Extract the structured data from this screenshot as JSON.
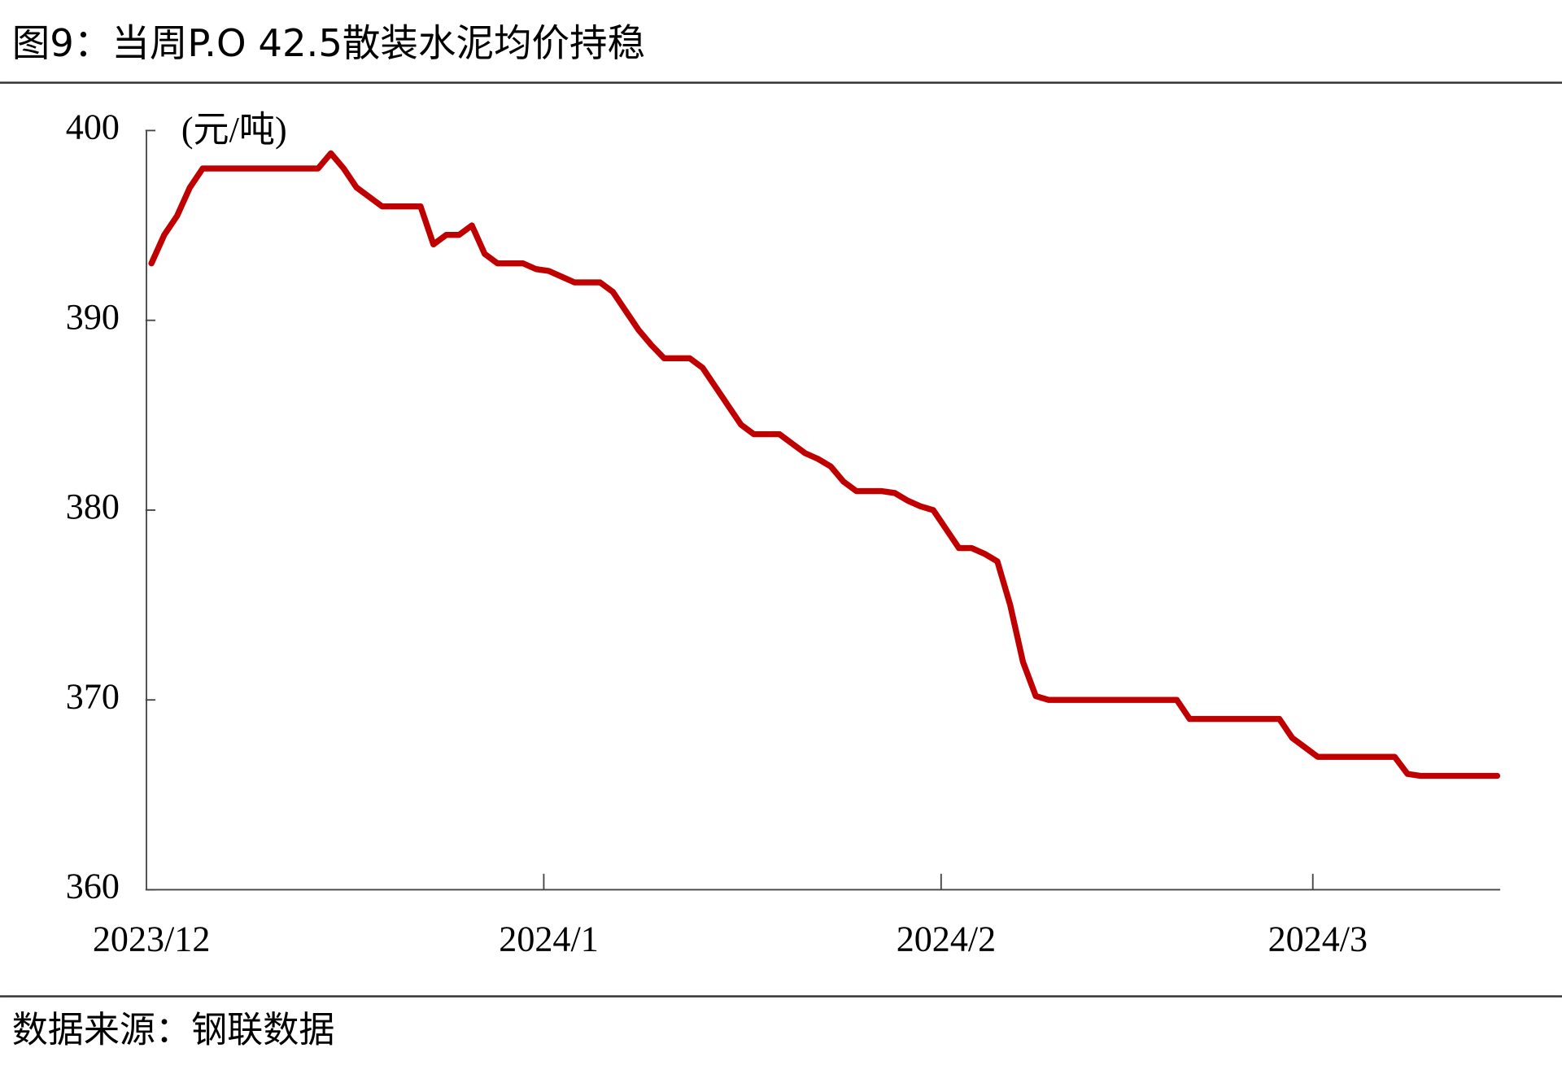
{
  "chart_data": {
    "type": "line",
    "title": "图9：当周P.O 42.5散装水泥均价持稳",
    "y_label": "(元/吨)",
    "source": "数据来源：钢联数据",
    "color": "#c00000",
    "categories": [
      "2023/12",
      null,
      null,
      null,
      null,
      null,
      null,
      null,
      null,
      null,
      null,
      null,
      null,
      null,
      null,
      null,
      null,
      null,
      null,
      null,
      null,
      null,
      null,
      null,
      null,
      null,
      null,
      null,
      null,
      null,
      null,
      "2024/1",
      null,
      null,
      null,
      null,
      null,
      null,
      null,
      null,
      null,
      null,
      null,
      null,
      null,
      null,
      null,
      null,
      null,
      null,
      null,
      null,
      null,
      null,
      null,
      null,
      null,
      null,
      null,
      null,
      null,
      null,
      "2024/2",
      null,
      null,
      null,
      null,
      null,
      null,
      null,
      null,
      null,
      null,
      null,
      null,
      null,
      null,
      null,
      null,
      null,
      null,
      null,
      null,
      null,
      null,
      null,
      null,
      null,
      null,
      null,
      null,
      "2024/3",
      null,
      null,
      null,
      null,
      null,
      null,
      null,
      null,
      null,
      null,
      null,
      null,
      null,
      null
    ],
    "values": [
      393,
      394.5,
      395.5,
      397,
      398,
      398,
      398,
      398,
      398,
      398,
      398,
      398,
      398,
      398,
      398.8,
      398,
      397,
      396.5,
      396,
      396,
      396,
      396,
      394,
      394.5,
      394.5,
      395,
      393.5,
      393,
      393,
      393,
      392.7,
      392.6,
      392.3,
      392,
      392,
      392,
      391.5,
      390.5,
      389.5,
      388.7,
      388,
      388,
      388,
      387.5,
      386.5,
      385.5,
      384.5,
      384,
      384,
      384,
      383.5,
      383,
      382.7,
      382.3,
      381.5,
      381,
      381,
      381,
      380.9,
      380.5,
      380.2,
      380,
      379,
      378,
      378,
      377.7,
      377.3,
      375,
      372,
      370.2,
      370,
      370,
      370,
      370,
      370,
      370,
      370,
      370,
      370,
      370,
      370,
      369,
      369,
      369,
      369,
      369,
      369,
      369,
      369,
      368,
      367.5,
      367,
      367,
      367,
      367,
      367,
      367,
      367,
      366.1,
      366,
      366,
      366,
      366,
      366,
      366,
      366
    ],
    "ylim": [
      360,
      400
    ],
    "yticks": [
      360,
      370,
      380,
      390,
      400
    ]
  }
}
